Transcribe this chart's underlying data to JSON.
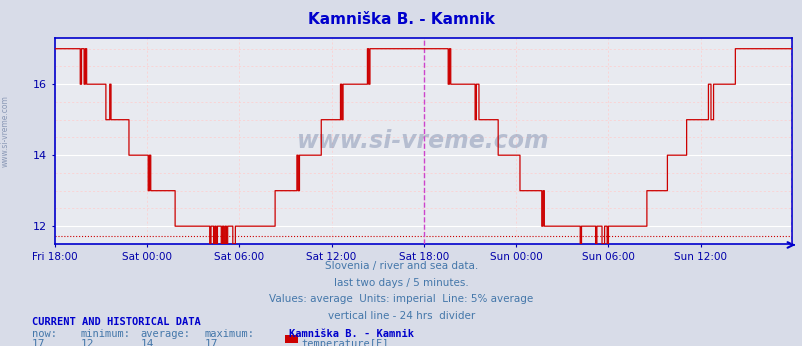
{
  "title": "Kamniška B. - Kamnik",
  "title_color": "#0000cc",
  "bg_color": "#d8dce8",
  "plot_bg_color": "#e8eaf0",
  "grid_color_major": "#ffffff",
  "grid_color_minor": "#ffcccc",
  "line_color": "#cc0000",
  "axis_color": "#0000cc",
  "tick_color": "#0000aa",
  "watermark_color": "#7788aa",
  "vline_color": "#cc44cc",
  "hline_avg_color": "#cc0000",
  "xlabel_color": "#0000aa",
  "ylabel_values": [
    12,
    14,
    16
  ],
  "ylim": [
    11.5,
    17.3
  ],
  "xlim": [
    0,
    575
  ],
  "num_points": 576,
  "x_tick_positions": [
    0,
    72,
    144,
    216,
    288,
    360,
    432,
    504
  ],
  "x_tick_labels": [
    "Fri 18:00",
    "Sat 00:00",
    "Sat 06:00",
    "Sat 12:00",
    "Sat 18:00",
    "Sun 00:00",
    "Sun 06:00",
    "Sun 12:00"
  ],
  "vline_x": 288,
  "avg_line_y": 11.72,
  "watermark": "www.si-vreme.com",
  "footer_line1": "Slovenia / river and sea data.",
  "footer_line2": "last two days / 5 minutes.",
  "footer_line3": "Values: average  Units: imperial  Line: 5% average",
  "footer_line4": "vertical line - 24 hrs  divider",
  "footer_color": "#4477aa",
  "current_label": "CURRENT AND HISTORICAL DATA",
  "now_val": "17",
  "min_val": "12",
  "avg_val": "14",
  "max_val": "17",
  "station_name": "Kamniška B. - Kamnik",
  "param_name": "temperature[F]",
  "legend_color": "#cc0000",
  "left_watermark": "www.si-vreme.com"
}
